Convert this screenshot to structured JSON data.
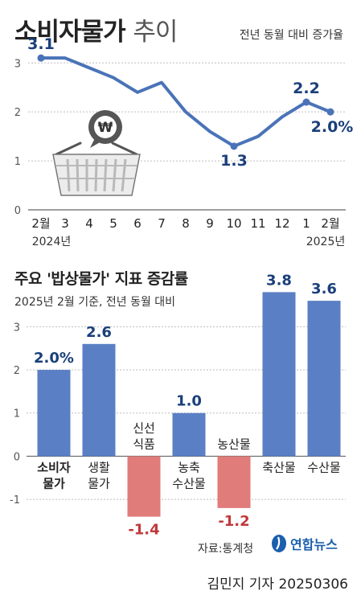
{
  "header": {
    "title_bold": "소비자물가",
    "title_light": "추이",
    "subtitle": "전년 동월 대비 증가율"
  },
  "section2": {
    "title": "주요 '밥상물가' 지표 증감률",
    "subtitle": "2025년 2월 기준, 전년 동월 대비"
  },
  "footer": {
    "source": "자료:통계청",
    "logo_text": "연합뉴스",
    "byline": "김민지 기자 20250306"
  },
  "colors": {
    "line": "#4a73b8",
    "bar_positive": "#5a7fc4",
    "bar_negative": "#e07c7a",
    "grid": "#bdbdbd",
    "label": "#1a3f7a",
    "label_negative": "#c0393b"
  },
  "chart_data": [
    {
      "type": "line",
      "title": "소비자물가 추이",
      "x": [
        "2월",
        "3",
        "4",
        "5",
        "6",
        "7",
        "8",
        "9",
        "10",
        "11",
        "12",
        "1",
        "2월"
      ],
      "year_labels": [
        {
          "index": 0,
          "text": "2024년"
        },
        {
          "index": 12,
          "text": "2025년"
        }
      ],
      "series": [
        {
          "values": [
            3.1,
            3.1,
            2.9,
            2.7,
            2.4,
            2.6,
            2.0,
            1.6,
            1.3,
            1.5,
            1.9,
            2.2,
            2.0
          ]
        }
      ],
      "data_labels": [
        {
          "index": 0,
          "text": "3.1"
        },
        {
          "index": 8,
          "text": "1.3"
        },
        {
          "index": 11,
          "text": "2.2"
        },
        {
          "index": 12,
          "text": "2.0%"
        }
      ],
      "yticks": [
        "0",
        "1",
        "2",
        "3"
      ],
      "ylim": [
        0,
        3.3
      ],
      "grid": true,
      "icon": "shopping-basket-won-icon"
    },
    {
      "type": "bar",
      "title": "주요 '밥상물가' 지표 증감률",
      "categories": [
        {
          "lines": [
            "소비자",
            "물가"
          ],
          "bold": true
        },
        {
          "lines": [
            "생활",
            "물가"
          ],
          "bold": false
        },
        {
          "lines": [
            "신선",
            "식품"
          ],
          "bold": false
        },
        {
          "lines": [
            "농축",
            "수산물"
          ],
          "bold": false
        },
        {
          "lines": [
            "농산물"
          ],
          "bold": false
        },
        {
          "lines": [
            "축산물"
          ],
          "bold": false
        },
        {
          "lines": [
            "수산물"
          ],
          "bold": false
        }
      ],
      "values": [
        2.0,
        2.6,
        -1.4,
        1.0,
        -1.2,
        3.8,
        3.6
      ],
      "value_labels": [
        "2.0%",
        "2.6",
        "-1.4",
        "1.0",
        "-1.2",
        "3.8",
        "3.6"
      ],
      "yticks": [
        "-1",
        "0",
        "1",
        "2",
        "3"
      ],
      "ylim": [
        -1.5,
        3.9
      ],
      "grid": true
    }
  ]
}
